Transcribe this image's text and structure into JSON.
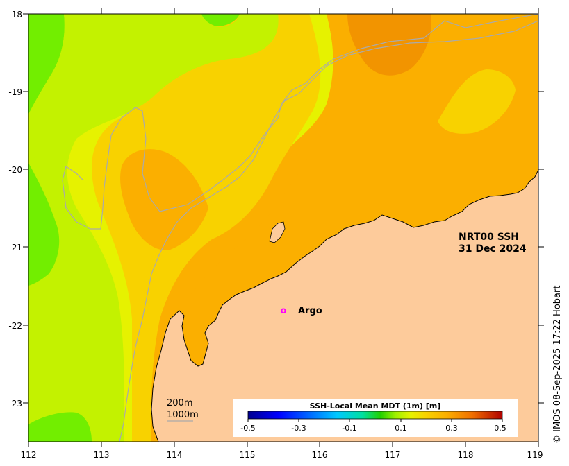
{
  "map": {
    "product_label": "NRT00 SSH",
    "date_label": "31 Dec 2024",
    "x_ticks": [
      "112",
      "113",
      "114",
      "115",
      "116",
      "117",
      "118",
      "119"
    ],
    "y_ticks": [
      "-18",
      "-19",
      "-20",
      "-21",
      "-22",
      "-23"
    ],
    "x_range": [
      112,
      119
    ],
    "y_range": [
      -23.5,
      -18
    ],
    "station_name": "Argo",
    "station_marker": "o",
    "station_lon": 115.5,
    "station_lat": -21.83,
    "isobaths": [
      "200m",
      "1000m"
    ]
  },
  "colorbar": {
    "title": "SSH-Local Mean MDT (1m) [m]",
    "ticks": [
      "-0.5",
      "-0.3",
      "-0.1",
      "0.1",
      "0.3",
      "0.5"
    ],
    "range": [
      -0.5,
      0.5
    ]
  },
  "credit": "© IMOS 08-Sep-2025 17:22 Hobart",
  "colors": {
    "land": "#fdcb9b",
    "orange_dark": "#f29400",
    "orange": "#fbaf00",
    "gold": "#f8d200",
    "yellow": "#e6f200",
    "yellow_green": "#c3f200",
    "green": "#72ee00",
    "isobath": "#aaaaaa",
    "station": "#ff00ff"
  }
}
